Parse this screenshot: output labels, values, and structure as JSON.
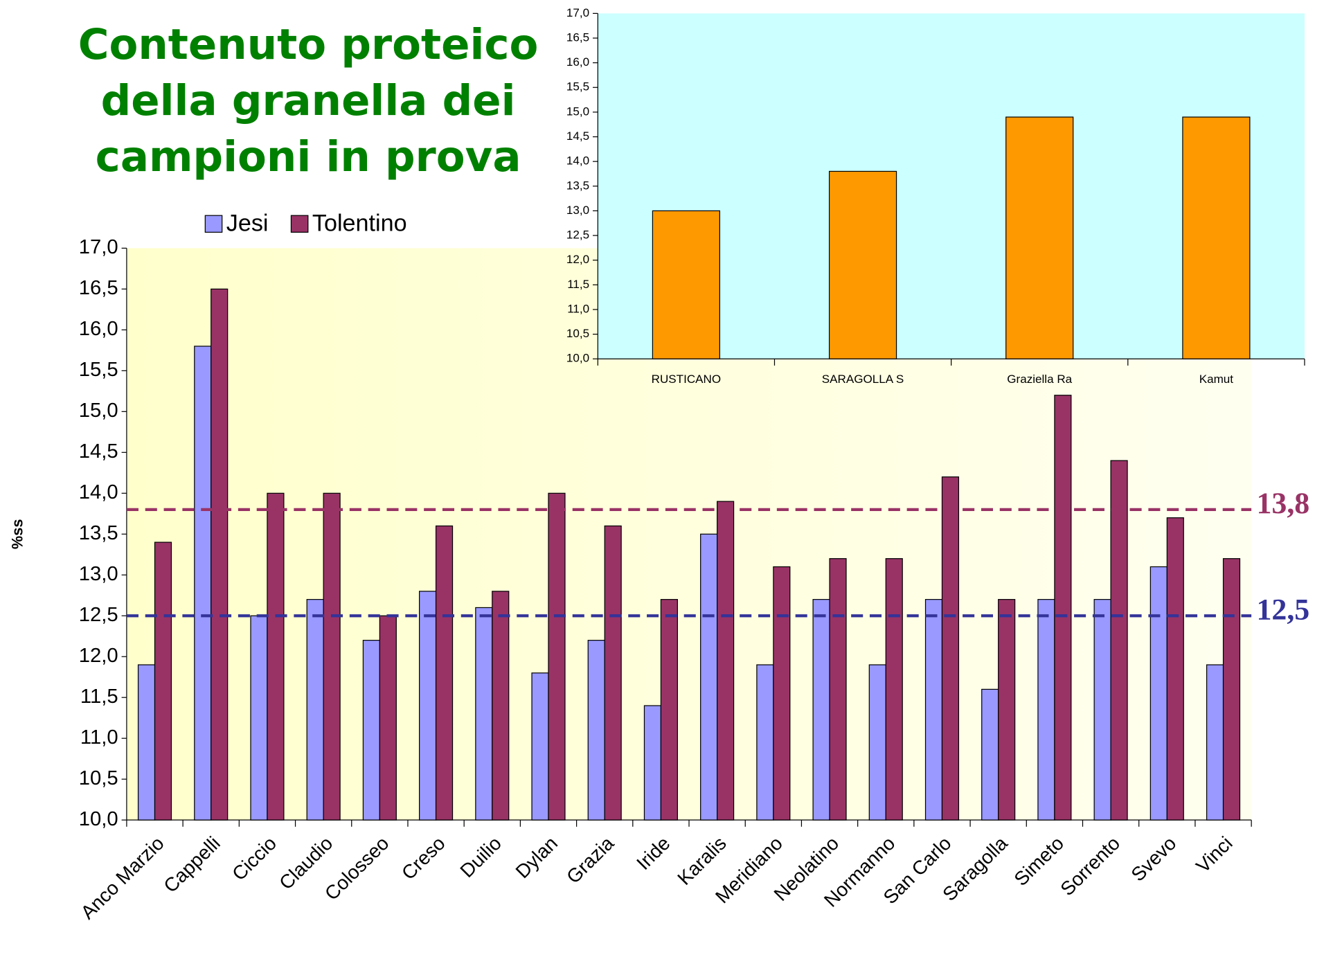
{
  "chart_data": [
    {
      "type": "bar",
      "title": "Contenuto proteico della granella dei campioni in prova",
      "y_label": "%ss",
      "categories": [
        "Anco Marzio",
        "Cappelli",
        "Ciccio",
        "Claudio",
        "Colosseo",
        "Creso",
        "Duilio",
        "Dylan",
        "Grazia",
        "Iride",
        "Karalis",
        "Meridiano",
        "Neolatino",
        "Normanno",
        "San Carlo",
        "Saragolla",
        "Simeto",
        "Sorrento",
        "Svevo",
        "Vinci"
      ],
      "series": [
        {
          "name": "Jesi",
          "color": "#9999ff",
          "values": [
            11.9,
            15.8,
            12.5,
            12.7,
            12.2,
            12.8,
            12.6,
            11.8,
            12.2,
            11.4,
            13.5,
            11.9,
            12.7,
            11.9,
            12.7,
            11.6,
            12.7,
            12.7,
            13.1,
            11.9
          ]
        },
        {
          "name": "Tolentino",
          "color": "#993366",
          "values": [
            13.4,
            16.5,
            14.0,
            14.0,
            12.5,
            13.6,
            12.8,
            14.0,
            13.6,
            12.7,
            13.9,
            13.1,
            13.2,
            13.2,
            14.2,
            12.7,
            15.2,
            14.4,
            13.7,
            13.2
          ]
        }
      ],
      "reference_lines": [
        {
          "value": 13.8,
          "label": "13,8",
          "color": "#993366"
        },
        {
          "value": 12.5,
          "label": "12,5",
          "color": "#333399"
        }
      ],
      "ylim": [
        10,
        17
      ],
      "yticks": [
        {
          "value": 10,
          "label": "10,0"
        },
        {
          "value": 10.5,
          "label": "10,5"
        },
        {
          "value": 11,
          "label": "11,0"
        },
        {
          "value": 11.5,
          "label": "11,5"
        },
        {
          "value": 12,
          "label": "12,0"
        },
        {
          "value": 12.5,
          "label": "12,5"
        },
        {
          "value": 13,
          "label": "13,0"
        },
        {
          "value": 13.5,
          "label": "13,5"
        },
        {
          "value": 14,
          "label": "14,0"
        },
        {
          "value": 14.5,
          "label": "14,5"
        },
        {
          "value": 15,
          "label": "15,0"
        },
        {
          "value": 15.5,
          "label": "15,5"
        },
        {
          "value": 16,
          "label": "16,0"
        },
        {
          "value": 16.5,
          "label": "16,5"
        },
        {
          "value": 17,
          "label": "17,0"
        }
      ],
      "legend": "top"
    },
    {
      "type": "bar",
      "categories": [
        "RUSTICANO",
        "SARAGOLLA S",
        "Graziella Ra",
        "Kamut"
      ],
      "values": [
        13.0,
        13.8,
        14.9,
        14.9
      ],
      "color": "#ff9900",
      "ylim": [
        10,
        17
      ],
      "yticks": [
        {
          "value": 10,
          "label": "10,0"
        },
        {
          "value": 10.5,
          "label": "10,5"
        },
        {
          "value": 11,
          "label": "11,0"
        },
        {
          "value": 11.5,
          "label": "11,5"
        },
        {
          "value": 12,
          "label": "12,0"
        },
        {
          "value": 12.5,
          "label": "12,5"
        },
        {
          "value": 13,
          "label": "13,0"
        },
        {
          "value": 13.5,
          "label": "13,5"
        },
        {
          "value": 14,
          "label": "14,0"
        },
        {
          "value": 14.5,
          "label": "14,5"
        },
        {
          "value": 15,
          "label": "15,0"
        },
        {
          "value": 15.5,
          "label": "15,5"
        },
        {
          "value": 16,
          "label": "16,0"
        },
        {
          "value": 16.5,
          "label": "16,5"
        },
        {
          "value": 17,
          "label": "17,0"
        }
      ]
    }
  ]
}
